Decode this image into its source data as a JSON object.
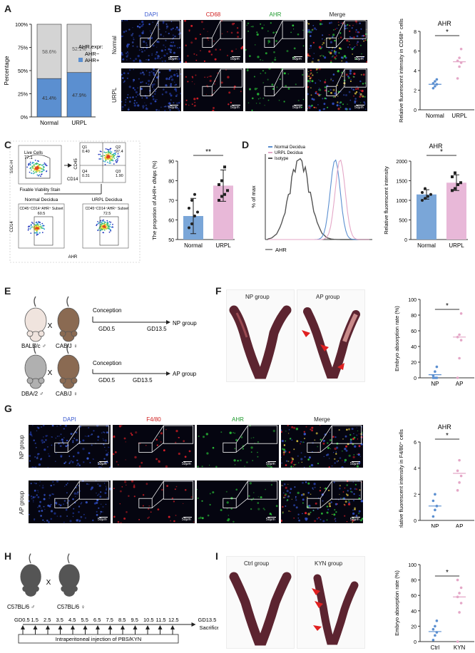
{
  "panels": {
    "A": {
      "label": "A",
      "chart_data": {
        "type": "bar",
        "stacked": true,
        "categories": [
          "Normal",
          "URPL"
        ],
        "series": [
          {
            "name": "AHR+",
            "values": [
              41.4,
              47.9
            ],
            "color": "#5b8fd0"
          },
          {
            "name": "AHR−",
            "values": [
              58.6,
              52.1
            ],
            "color": "#d4d4d4"
          }
        ],
        "ylabel": "Percentage",
        "yticks": [
          "0%",
          "25%",
          "50%",
          "75%",
          "100%"
        ],
        "legend_title": "AHR.expr:",
        "legend_items": [
          "AHR−",
          "AHR+"
        ],
        "bar_labels": [
          "58.6%",
          "52.1%",
          "41.4%",
          "47.9%"
        ]
      }
    },
    "B": {
      "label": "B",
      "columns": [
        "DAPI",
        "CD68",
        "AHR",
        "Merge"
      ],
      "rows": [
        "Normal",
        "URPL"
      ],
      "scale": "50μm",
      "chart_data": {
        "type": "scatter",
        "title": "AHR",
        "categories": [
          "Normal",
          "URPL"
        ],
        "points": [
          [
            2.2,
            2.4,
            2.6,
            2.7,
            2.9,
            3.1
          ],
          [
            3.2,
            4.4,
            4.8,
            5.0,
            5.3,
            6.2
          ]
        ],
        "means": [
          2.6,
          4.9
        ],
        "significance": "*",
        "ylabel": "Relative fluorescent intensity in CD68⁺ cells",
        "yticks": [
          "0",
          "2",
          "4",
          "6",
          "8"
        ],
        "ylim": [
          0,
          8
        ]
      }
    },
    "C": {
      "label": "C",
      "flow": {
        "live_cells_label": "Live Cells",
        "live_cells_value": "77.1",
        "x_axis_1": "Fixable Viability Stain",
        "y_axis_1": "SSC-H",
        "q1": "Q1",
        "q1_value": "0.40",
        "q2": "Q2",
        "q2_value": "97.4",
        "q3": "Q3",
        "q3_value": "1.90",
        "q4": "Q4",
        "q4_value": "0.31",
        "y_axis_2": "CD45",
        "x_axis_2": "CD14",
        "normal_title": "Normal Decidua",
        "normal_subset": "CD45⁺CD14⁺AHR⁺ Subset",
        "normal_value": "60.5",
        "urpl_title": "URPL Decidua",
        "urpl_subset": "CD45⁺CD14⁺AHR⁺ Subset",
        "urpl_value": "72.5",
        "y_axis_3": "CD14",
        "x_axis_3": "AHR"
      },
      "chart_data": {
        "type": "bar",
        "categories": [
          "Normal",
          "URPL"
        ],
        "values": [
          62,
          77.5
        ],
        "errors": [
          9,
          8
        ],
        "points": [
          [
            56,
            58,
            62,
            64,
            66,
            70,
            73
          ],
          [
            70,
            72,
            73,
            75,
            78,
            80,
            87
          ]
        ],
        "significance": "**",
        "ylabel": "The propotion of AHR+ dMφs (%)",
        "yticks": [
          "50",
          "60",
          "70",
          "80",
          "90"
        ],
        "ylim": [
          50,
          90
        ]
      }
    },
    "D": {
      "label": "D",
      "legend": [
        "Normal Decidua",
        "URPL Decidua",
        "Isotype"
      ],
      "hist_ylabel": "% of max",
      "hist_xlabel": "AHR",
      "chart_data": {
        "type": "bar",
        "title": "AHR",
        "categories": [
          "Normal",
          "URPL"
        ],
        "values": [
          1150,
          1450
        ],
        "errors": [
          120,
          200
        ],
        "points": [
          [
            1000,
            1050,
            1100,
            1150,
            1200,
            1300
          ],
          [
            1250,
            1300,
            1400,
            1450,
            1600,
            1700
          ]
        ],
        "significance": "*",
        "ylabel": "Relative fluorescent intensity",
        "yticks": [
          "0",
          "500",
          "1000",
          "1500",
          "2000"
        ],
        "ylim": [
          0,
          2000
        ]
      }
    },
    "E": {
      "label": "E",
      "np": {
        "mouse1": "BALB/c ♂",
        "mouse2": "CAB/J ♀",
        "conception": "Conception",
        "start": "GD0.5",
        "end": "GD13.5",
        "group": "NP group"
      },
      "ap": {
        "mouse1": "DBA/2 ♂",
        "mouse2": "CAB/J ♀",
        "conception": "Conception",
        "start": "GD0.5",
        "end": "GD13.5",
        "group": "AP group"
      },
      "cross": "X"
    },
    "F": {
      "label": "F",
      "photo_labels": [
        "NP group",
        "AP group"
      ],
      "chart_data": {
        "type": "scatter",
        "categories": [
          "NP",
          "AP"
        ],
        "points": [
          [
            0,
            0,
            0,
            3,
            8,
            14
          ],
          [
            0,
            25,
            48,
            52,
            55,
            82
          ]
        ],
        "means": [
          4,
          52
        ],
        "significance": "*",
        "ylabel": "Embryo absorption rate (%)",
        "yticks": [
          "0",
          "20",
          "40",
          "60",
          "80",
          "100"
        ],
        "ylim": [
          0,
          100
        ]
      }
    },
    "G": {
      "label": "G",
      "columns": [
        "DAPI",
        "F4/80",
        "AHR",
        "Merge"
      ],
      "rows": [
        "NP group",
        "AP group"
      ],
      "scale": "50μm",
      "chart_data": {
        "type": "scatter",
        "title": "AHR",
        "categories": [
          "NP",
          "AP"
        ],
        "points": [
          [
            0.3,
            0.8,
            1.1,
            1.5,
            2.0
          ],
          [
            2.3,
            2.9,
            3.4,
            3.8,
            4.6
          ]
        ],
        "means": [
          1.1,
          3.6
        ],
        "significance": "*",
        "ylabel": "Relative fluorescent intensity in F4/80⁺ cells",
        "yticks": [
          "0",
          "2",
          "4",
          "6"
        ],
        "ylim": [
          0,
          6
        ]
      }
    },
    "H": {
      "label": "H",
      "mouse1": "C57BL/6 ♂",
      "mouse2": "C57BL/6 ♀",
      "cross": "X",
      "days": [
        "GD0.5",
        "1.5",
        "2.5",
        "3.5",
        "4.5",
        "5.5",
        "6.5",
        "7.5",
        "8.5",
        "9.5",
        "10.5",
        "11.5",
        "12.5"
      ],
      "end": "GD13.5",
      "end_label": "Sacrifice",
      "injection": "Intraperitoneal injection of PBS/KYN"
    },
    "I": {
      "label": "I",
      "photo_labels": [
        "Ctrl group",
        "KYN group"
      ],
      "chart_data": {
        "type": "scatter",
        "categories": [
          "Ctrl",
          "KYN"
        ],
        "points": [
          [
            2,
            8,
            12,
            16,
            20,
            27
          ],
          [
            0,
            38,
            50,
            58,
            63,
            70,
            80
          ]
        ],
        "means": [
          13,
          58
        ],
        "significance": "*",
        "ylabel": "Embryo absorption rate (%)",
        "yticks": [
          "0",
          "20",
          "40",
          "60",
          "80",
          "100"
        ],
        "ylim": [
          0,
          100
        ]
      }
    }
  },
  "colors": {
    "blue": "#5b8fd0",
    "pink": "#e4a7c7",
    "pinkBar": "#e8b8d8",
    "blueBar": "#7aa6d8",
    "grey": "#d4d4d4"
  }
}
